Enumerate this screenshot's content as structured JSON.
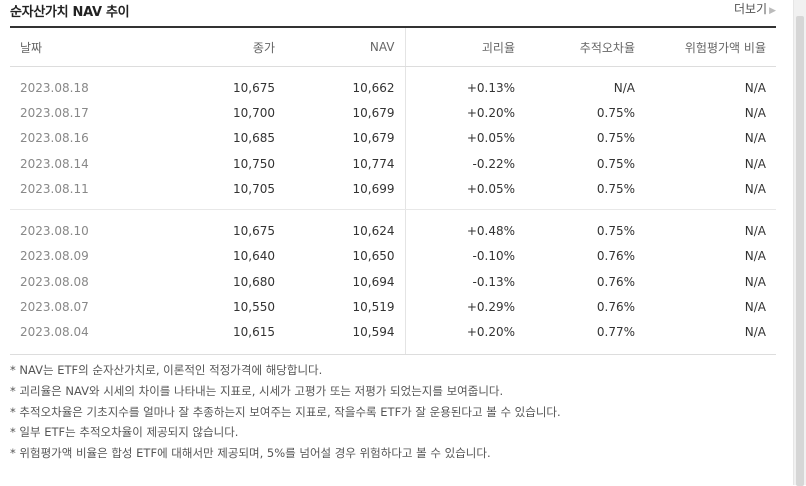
{
  "header": {
    "title": "순자산가치 NAV 추이",
    "more_label": "더보기"
  },
  "table": {
    "columns": [
      "날짜",
      "종가",
      "NAV",
      "괴리율",
      "추적오차율",
      "위험평가액 비율"
    ],
    "groups": [
      [
        {
          "date": "2023.08.18",
          "close": "10,675",
          "nav": "10,662",
          "premium": "+0.13%",
          "dir": "up",
          "tracking": "N/A",
          "risk": "N/A"
        },
        {
          "date": "2023.08.17",
          "close": "10,700",
          "nav": "10,679",
          "premium": "+0.20%",
          "dir": "up",
          "tracking": "0.75%",
          "risk": "N/A"
        },
        {
          "date": "2023.08.16",
          "close": "10,685",
          "nav": "10,679",
          "premium": "+0.05%",
          "dir": "up",
          "tracking": "0.75%",
          "risk": "N/A"
        },
        {
          "date": "2023.08.14",
          "close": "10,750",
          "nav": "10,774",
          "premium": "-0.22%",
          "dir": "down",
          "tracking": "0.75%",
          "risk": "N/A"
        },
        {
          "date": "2023.08.11",
          "close": "10,705",
          "nav": "10,699",
          "premium": "+0.05%",
          "dir": "up",
          "tracking": "0.75%",
          "risk": "N/A"
        }
      ],
      [
        {
          "date": "2023.08.10",
          "close": "10,675",
          "nav": "10,624",
          "premium": "+0.48%",
          "dir": "up",
          "tracking": "0.75%",
          "risk": "N/A"
        },
        {
          "date": "2023.08.09",
          "close": "10,640",
          "nav": "10,650",
          "premium": "-0.10%",
          "dir": "down",
          "tracking": "0.76%",
          "risk": "N/A"
        },
        {
          "date": "2023.08.08",
          "close": "10,680",
          "nav": "10,694",
          "premium": "-0.13%",
          "dir": "down",
          "tracking": "0.76%",
          "risk": "N/A"
        },
        {
          "date": "2023.08.07",
          "close": "10,550",
          "nav": "10,519",
          "premium": "+0.29%",
          "dir": "up",
          "tracking": "0.76%",
          "risk": "N/A"
        },
        {
          "date": "2023.08.04",
          "close": "10,615",
          "nav": "10,594",
          "premium": "+0.20%",
          "dir": "up",
          "tracking": "0.77%",
          "risk": "N/A"
        }
      ]
    ]
  },
  "notes": [
    "* NAV는 ETF의 순자산가치로, 이론적인 적정가격에 해당합니다.",
    "* 괴리율은 NAV와 시세의 차이를 나타내는 지표로, 시세가 고평가 또는 저평가 되었는지를 보여줍니다.",
    "* 추적오차율은 기초지수를 얼마나 잘 추종하는지 보여주는 지표로, 작을수록 ETF가 잘 운용된다고 볼 수 있습니다.",
    "* 일부 ETF는 추적오차율이 제공되지 않습니다.",
    "* 위험평가액 비율은 합성 ETF에 대해서만 제공되며, 5%를 넘어설 경우 위험하다고 볼 수 있습니다."
  ],
  "colors": {
    "up": "#e03131",
    "down": "#2b6cd0",
    "table_top_border": "#333333"
  },
  "icons": {
    "more": "chevron-right-icon"
  }
}
